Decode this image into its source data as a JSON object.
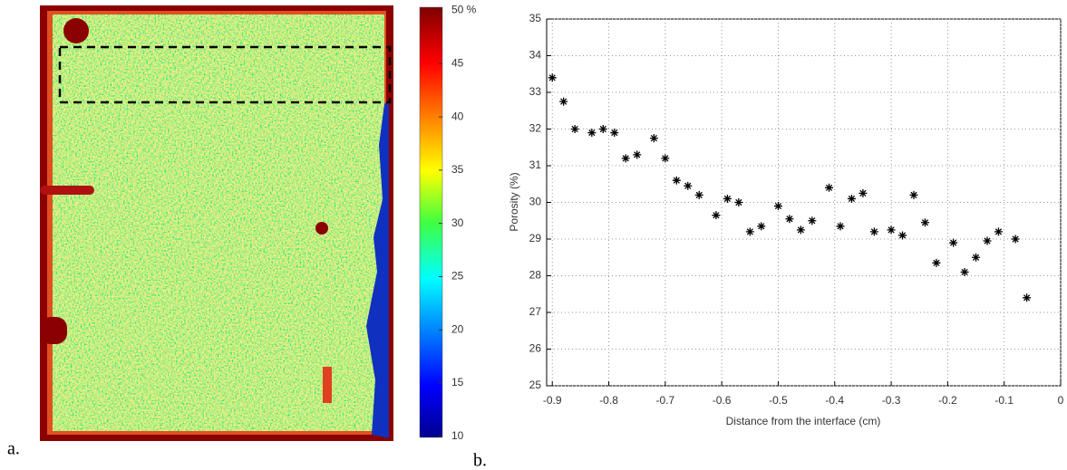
{
  "chart_data": [
    {
      "type": "colormap",
      "panel_label": "a.",
      "colorbar": {
        "lim": [
          9.9,
          50.3
        ],
        "ticks": [
          {
            "value": 50,
            "label": "50 %"
          },
          45,
          40,
          35,
          30,
          25,
          20,
          15,
          10
        ]
      }
    },
    {
      "type": "scatter",
      "panel_label": "b.",
      "x_label": "Distance from the interface (cm)",
      "y_label": "Porosity (%)",
      "xlim": [
        -0.91,
        0
      ],
      "ylim": [
        25,
        35
      ],
      "xticks": [
        -0.9,
        -0.8,
        -0.7,
        -0.6,
        -0.5,
        -0.4,
        -0.3,
        -0.2,
        -0.1,
        0
      ],
      "yticks": [
        25,
        26,
        27,
        28,
        29,
        30,
        31,
        32,
        33,
        34,
        35
      ],
      "grid": true,
      "color": "#000000",
      "x": [
        -0.9,
        -0.88,
        -0.86,
        -0.83,
        -0.81,
        -0.79,
        -0.77,
        -0.75,
        -0.72,
        -0.7,
        -0.68,
        -0.66,
        -0.64,
        -0.61,
        -0.59,
        -0.57,
        -0.55,
        -0.53,
        -0.5,
        -0.48,
        -0.46,
        -0.44,
        -0.41,
        -0.39,
        -0.37,
        -0.35,
        -0.33,
        -0.3,
        -0.28,
        -0.26,
        -0.24,
        -0.22,
        -0.19,
        -0.17,
        -0.15,
        -0.13,
        -0.11,
        -0.08,
        -0.06
      ],
      "values": [
        33.4,
        32.75,
        32.0,
        31.9,
        32.0,
        31.9,
        31.2,
        31.3,
        31.75,
        31.2,
        30.6,
        30.45,
        30.2,
        29.65,
        30.1,
        30.0,
        29.2,
        29.35,
        29.9,
        29.55,
        29.25,
        29.5,
        30.4,
        29.35,
        30.1,
        30.25,
        29.2,
        29.25,
        29.1,
        30.2,
        29.45,
        28.35,
        28.9,
        28.1,
        28.5,
        28.95,
        29.2,
        29.0,
        27.4
      ]
    }
  ]
}
